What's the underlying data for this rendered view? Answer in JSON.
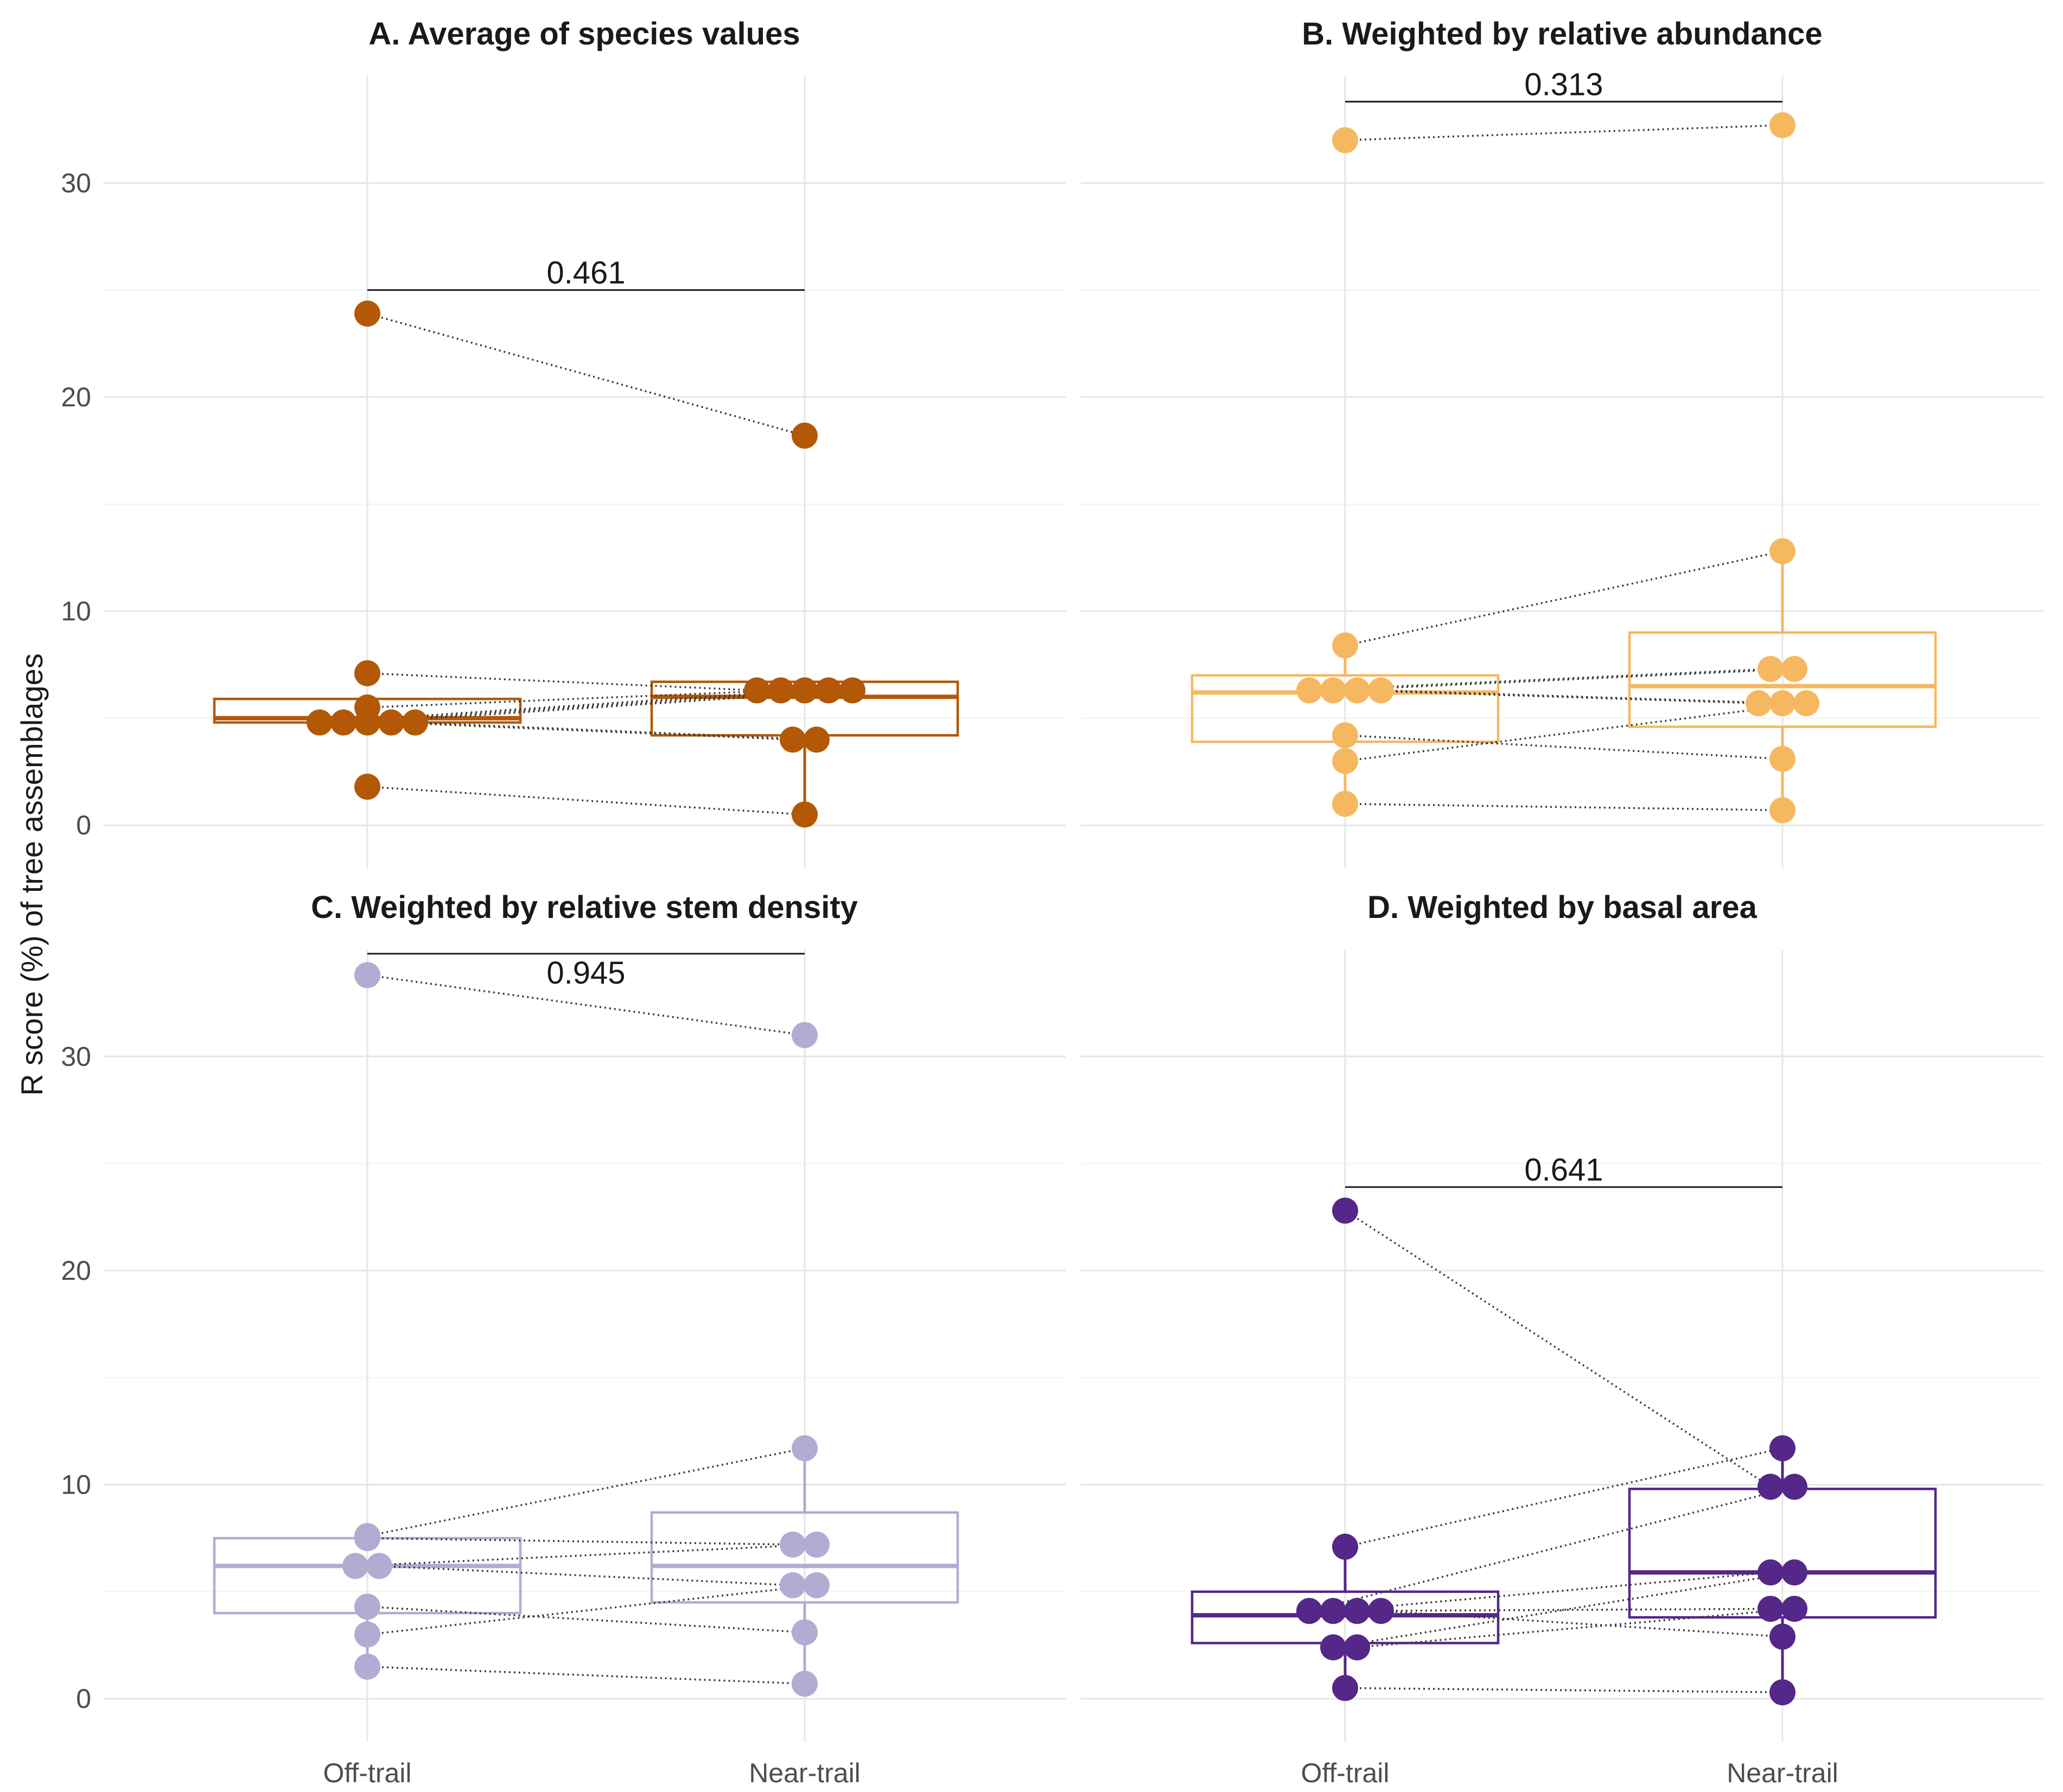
{
  "figure": {
    "y_axis_title": "R score (%) of tree assemblages",
    "x_categories": [
      "Off-trail",
      "Near-trail"
    ],
    "y_ticks": [
      0,
      10,
      20,
      30
    ]
  },
  "chart_data": [
    {
      "type": "box-paired",
      "title": "A. Average of species values",
      "color": "#B35806",
      "categories": [
        "Off-trail",
        "Near-trail"
      ],
      "ylim": [
        -2,
        35
      ],
      "p_value": "0.461",
      "bracket_y": 25,
      "box": [
        {
          "q1": 4.8,
          "median": 5.0,
          "q3": 5.9,
          "whisker_low": 4.8,
          "whisker_high": 5.9
        },
        {
          "q1": 4.2,
          "median": 6.0,
          "q3": 6.7,
          "whisker_low": 0.5,
          "whisker_high": 6.7
        }
      ],
      "pairs": [
        [
          23.9,
          18.2
        ],
        [
          7.1,
          6.3
        ],
        [
          5.5,
          6.3
        ],
        [
          4.8,
          6.3
        ],
        [
          4.8,
          6.3
        ],
        [
          4.8,
          6.3
        ],
        [
          4.8,
          4.0
        ],
        [
          4.8,
          4.0
        ],
        [
          1.8,
          0.5
        ]
      ]
    },
    {
      "type": "box-paired",
      "title": "B. Weighted by relative abundance",
      "color": "#F5B861",
      "categories": [
        "Off-trail",
        "Near-trail"
      ],
      "ylim": [
        -2,
        35
      ],
      "p_value": "0.313",
      "bracket_y": 33.8,
      "box": [
        {
          "q1": 3.9,
          "median": 6.2,
          "q3": 7.0,
          "whisker_low": 1.0,
          "whisker_high": 8.4
        },
        {
          "q1": 4.6,
          "median": 6.5,
          "q3": 9.0,
          "whisker_low": 0.7,
          "whisker_high": 12.8
        }
      ],
      "pairs": [
        [
          32.0,
          32.7
        ],
        [
          8.4,
          12.8
        ],
        [
          6.3,
          7.3
        ],
        [
          6.3,
          7.3
        ],
        [
          6.3,
          5.7
        ],
        [
          6.3,
          5.7
        ],
        [
          4.2,
          3.1
        ],
        [
          3.0,
          5.7
        ],
        [
          1.0,
          0.7
        ]
      ]
    },
    {
      "type": "box-paired",
      "title": "C. Weighted by relative stem density",
      "color": "#B2ABD2",
      "categories": [
        "Off-trail",
        "Near-trail"
      ],
      "ylim": [
        -2,
        35
      ],
      "p_value": "0.945",
      "bracket_y": 34.8,
      "box": [
        {
          "q1": 4.0,
          "median": 6.2,
          "q3": 7.5,
          "whisker_low": 1.5,
          "whisker_high": 7.6
        },
        {
          "q1": 4.5,
          "median": 6.2,
          "q3": 8.7,
          "whisker_low": 0.7,
          "whisker_high": 11.7
        }
      ],
      "pairs": [
        [
          33.8,
          31.0
        ],
        [
          7.6,
          11.7
        ],
        [
          7.5,
          7.2
        ],
        [
          6.2,
          7.2
        ],
        [
          6.2,
          5.3
        ],
        [
          4.3,
          3.1
        ],
        [
          3.0,
          5.3
        ],
        [
          1.5,
          0.7
        ]
      ]
    },
    {
      "type": "box-paired",
      "title": "D. Weighted by basal area",
      "color": "#542788",
      "categories": [
        "Off-trail",
        "Near-trail"
      ],
      "ylim": [
        -2,
        35
      ],
      "p_value": "0.641",
      "bracket_y": 23.9,
      "box": [
        {
          "q1": 2.6,
          "median": 3.9,
          "q3": 5.0,
          "whisker_low": 0.5,
          "whisker_high": 7.1
        },
        {
          "q1": 3.8,
          "median": 5.9,
          "q3": 9.8,
          "whisker_low": 0.3,
          "whisker_high": 11.7
        }
      ],
      "pairs": [
        [
          22.8,
          9.9
        ],
        [
          7.1,
          11.7
        ],
        [
          4.1,
          9.9
        ],
        [
          4.1,
          5.9
        ],
        [
          4.1,
          4.2
        ],
        [
          4.1,
          2.9
        ],
        [
          2.4,
          5.9
        ],
        [
          2.4,
          4.2
        ],
        [
          0.5,
          0.3
        ]
      ]
    }
  ]
}
